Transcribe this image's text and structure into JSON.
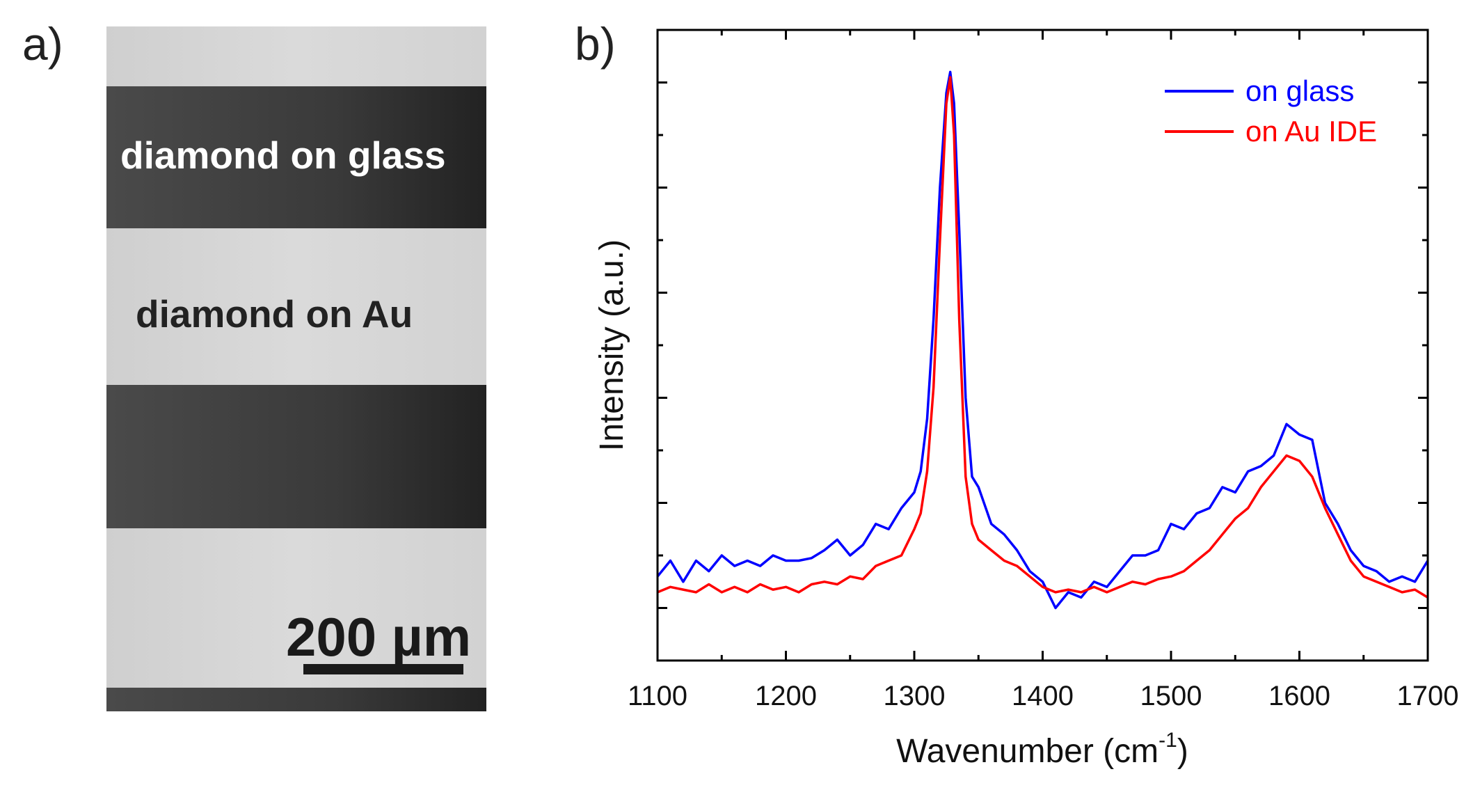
{
  "panel_a": {
    "label": "a)",
    "stripe_labels": [
      "diamond on glass",
      "diamond on Au"
    ],
    "scale_bar": "200 µm"
  },
  "panel_b": {
    "label": "b)"
  },
  "chart_data": {
    "type": "line",
    "title": "",
    "xlabel": "Wavenumber (cm",
    "xlabel_sup": "-1",
    "xlabel_end": ")",
    "ylabel": "Intensity (a.u.)",
    "xlim": [
      1100,
      1700
    ],
    "ylim": [
      0,
      12
    ],
    "xticks": [
      1100,
      1200,
      1300,
      1400,
      1500,
      1600,
      1700
    ],
    "xtick_labels": [
      "1100",
      "1200",
      "1300",
      "1400",
      "1500",
      "1600",
      "1700"
    ],
    "y_tick_labels_shown": false,
    "legend_position": "top-right",
    "x": [
      1100,
      1110,
      1120,
      1130,
      1140,
      1150,
      1160,
      1170,
      1180,
      1190,
      1200,
      1210,
      1220,
      1230,
      1240,
      1250,
      1260,
      1270,
      1280,
      1290,
      1300,
      1305,
      1310,
      1315,
      1320,
      1325,
      1328,
      1331,
      1335,
      1340,
      1345,
      1350,
      1360,
      1370,
      1380,
      1390,
      1400,
      1410,
      1420,
      1430,
      1440,
      1450,
      1460,
      1470,
      1480,
      1490,
      1500,
      1510,
      1520,
      1530,
      1540,
      1550,
      1560,
      1570,
      1580,
      1590,
      1600,
      1610,
      1620,
      1630,
      1640,
      1650,
      1660,
      1670,
      1680,
      1690,
      1700
    ],
    "series": [
      {
        "name": "on glass",
        "color": "#0000ff",
        "values": [
          1.6,
          1.9,
          1.5,
          1.9,
          1.7,
          2.0,
          1.8,
          1.9,
          1.8,
          2.0,
          1.9,
          1.9,
          1.95,
          2.1,
          2.3,
          2.0,
          2.2,
          2.6,
          2.5,
          2.9,
          3.2,
          3.6,
          4.6,
          6.5,
          9.0,
          10.8,
          11.2,
          10.6,
          8.2,
          5.0,
          3.5,
          3.3,
          2.6,
          2.4,
          2.1,
          1.7,
          1.5,
          1.0,
          1.3,
          1.2,
          1.5,
          1.4,
          1.7,
          2.0,
          2.0,
          2.1,
          2.6,
          2.5,
          2.8,
          2.9,
          3.3,
          3.2,
          3.6,
          3.7,
          3.9,
          4.5,
          4.3,
          4.2,
          3.0,
          2.6,
          2.1,
          1.8,
          1.7,
          1.5,
          1.6,
          1.5,
          1.9
        ]
      },
      {
        "name": "on Au IDE",
        "color": "#ff0000",
        "values": [
          1.3,
          1.4,
          1.35,
          1.3,
          1.45,
          1.3,
          1.4,
          1.3,
          1.45,
          1.35,
          1.4,
          1.3,
          1.45,
          1.5,
          1.45,
          1.6,
          1.55,
          1.8,
          1.9,
          2.0,
          2.5,
          2.8,
          3.6,
          5.2,
          8.0,
          10.6,
          11.1,
          10.0,
          6.5,
          3.5,
          2.6,
          2.3,
          2.1,
          1.9,
          1.8,
          1.6,
          1.4,
          1.3,
          1.35,
          1.3,
          1.4,
          1.3,
          1.4,
          1.5,
          1.45,
          1.55,
          1.6,
          1.7,
          1.9,
          2.1,
          2.4,
          2.7,
          2.9,
          3.3,
          3.6,
          3.9,
          3.8,
          3.5,
          2.9,
          2.4,
          1.9,
          1.6,
          1.5,
          1.4,
          1.3,
          1.35,
          1.2
        ]
      }
    ]
  }
}
